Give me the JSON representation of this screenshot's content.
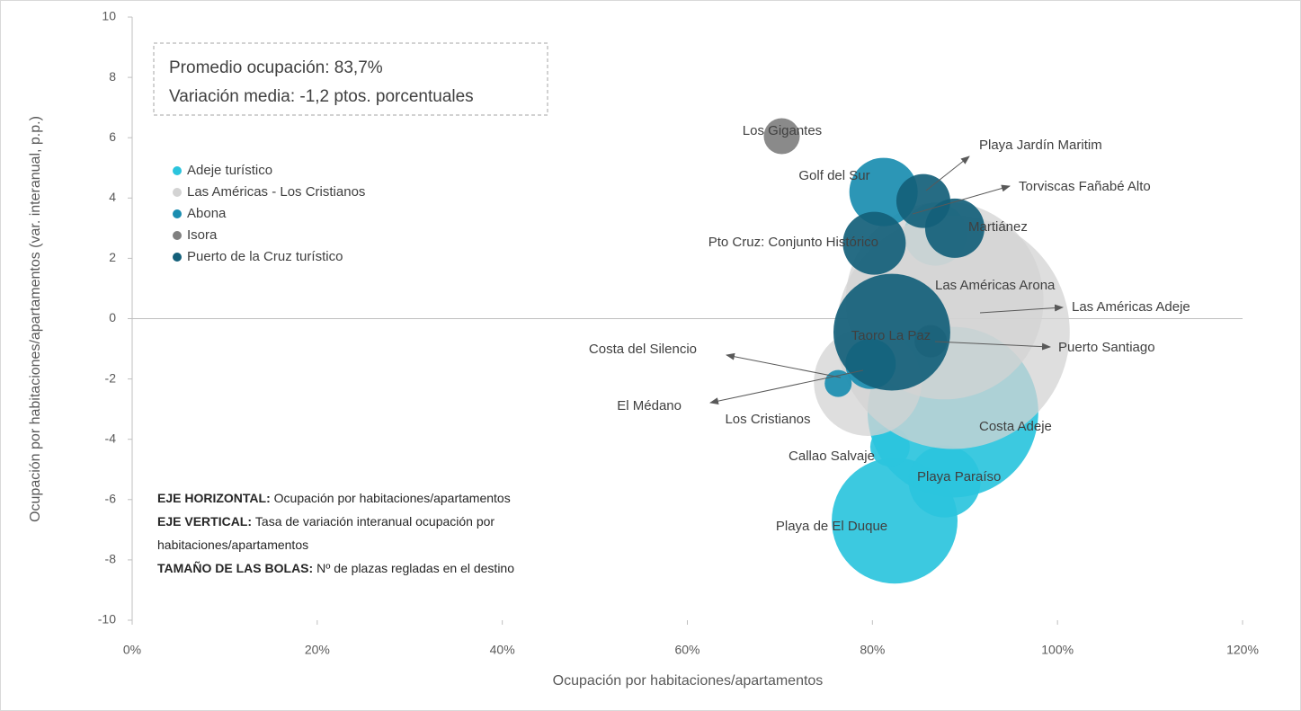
{
  "chart_data": {
    "type": "scatter",
    "x_label": "Ocupación por habitaciones/apartamentos",
    "y_label": "Ocupación por habitaciones/apartamentos (var. interanual, p.p.)",
    "xlim": [
      0,
      120
    ],
    "xticks": [
      {
        "value": 0,
        "label": "0%"
      },
      {
        "value": 20,
        "label": "20%"
      },
      {
        "value": 40,
        "label": "40%"
      },
      {
        "value": 60,
        "label": "60%"
      },
      {
        "value": 80,
        "label": "80%"
      },
      {
        "value": 100,
        "label": "100%"
      },
      {
        "value": 120,
        "label": "120%"
      }
    ],
    "ylim": [
      -10,
      10
    ],
    "yticks": [
      -10,
      -8,
      -6,
      -4,
      -2,
      0,
      2,
      4,
      6,
      8,
      10
    ],
    "legend": "upper left",
    "series": [
      {
        "name": "Adeje turístico",
        "color": "#2bc4dd",
        "labels": [
          "Costa Adeje",
          "Playa de El Duque",
          "Playa Paraíso",
          "Callao Salvaje",
          "Torviscas Fañabé Alto"
        ],
        "x": [
          88.7,
          82.4,
          87.8,
          81.9,
          86.8
        ],
        "values": [
          -3.1,
          -6.7,
          -5.4,
          -4.25,
          2.8
        ],
        "sizes": [
          26700,
          14500,
          4740,
          1430,
          3630
        ]
      },
      {
        "name": "Las Américas - Los Cristianos",
        "color": "#d3d3d3",
        "labels": [
          "Las Américas Adeje",
          "Las Américas Arona",
          "Los Cristianos"
        ],
        "x": [
          88.7,
          87.8,
          79.5
        ],
        "values": [
          -0.45,
          0.6,
          -2.1
        ],
        "sizes": [
          50000,
          35800,
          10660
        ]
      },
      {
        "name": "Abona",
        "color": "#1a8db0",
        "labels": [
          "Golf del Sur",
          "El Médano",
          "Costa del Silencio"
        ],
        "x": [
          81.2,
          79.8,
          76.3
        ],
        "values": [
          4.2,
          -1.5,
          -2.15
        ],
        "sizes": [
          4280,
          2320,
          670
        ]
      },
      {
        "name": "Isora",
        "color": "#808080",
        "labels": [
          "Los Gigantes",
          "Puerto Santiago"
        ],
        "x": [
          70.2,
          86.3
        ],
        "values": [
          6.05,
          -0.75
        ],
        "sizes": [
          1185,
          960
        ]
      },
      {
        "name": "Puerto de la Cruz turístico",
        "color": "#14607a",
        "labels": [
          "Playa Jardín Maritim",
          "Martiánez",
          "Pto Cruz: Conjunto Histórico",
          "Taoro La Paz"
        ],
        "x": [
          85.5,
          88.9,
          80.2,
          82.1
        ],
        "values": [
          3.9,
          3.0,
          2.5,
          -0.45
        ],
        "sizes": [
          2670,
          3230,
          3630,
          12500
        ]
      }
    ],
    "annotations": {
      "box": [
        "Promedio ocupación: 83,7%",
        "Variación media: -1,2 ptos. porcentuales"
      ],
      "notes": [
        {
          "bold": "EJE HORIZONTAL:",
          "lines": [
            "Ocupación por habitaciones/apartamentos"
          ]
        },
        {
          "bold": "EJE VERTICAL:",
          "lines": [
            "Tasa de variación interanual ocupación por",
            "habitaciones/apartamentos"
          ]
        },
        {
          "bold": "TAMAÑO DE LAS BOLAS:",
          "lines": [
            "Nº de plazas regladas en el destino"
          ]
        }
      ]
    }
  }
}
